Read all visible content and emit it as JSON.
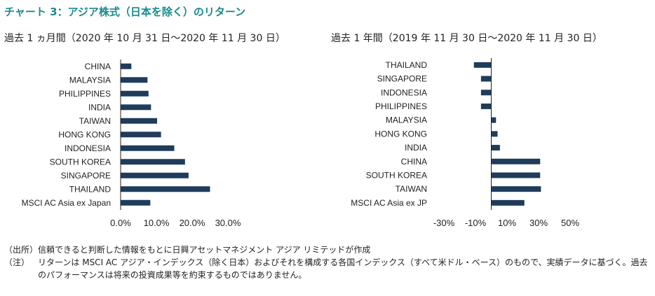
{
  "title": "チャート 3：アジア株式（日本を除く）のリターン",
  "colors": {
    "title": "#1a8a8a",
    "bar": "#1f3c5a",
    "axis": "#222222"
  },
  "chart_data": [
    {
      "type": "bar",
      "orientation": "horizontal",
      "title": "過去 1 ヵ月間（2020 年 10 月 31 日～2020 年 11 月 30 日）",
      "categories": [
        "CHINA",
        "MALAYSIA",
        "PHILIPPINES",
        "INDIA",
        "TAIWAN",
        "HONG KONG",
        "INDONESIA",
        "SOUTH KOREA",
        "SINGAPORE",
        "THAILAND",
        "MSCI AC Asia ex Japan"
      ],
      "values": [
        3.0,
        7.5,
        7.8,
        8.5,
        10.2,
        11.3,
        15.0,
        18.0,
        19.0,
        25.0,
        8.3
      ],
      "xlim": [
        0,
        30
      ],
      "xticks": [
        0,
        10,
        20,
        30
      ],
      "xtick_labels": [
        "0.0%",
        "10.0%",
        "20.0%",
        "30.0%"
      ]
    },
    {
      "type": "bar",
      "orientation": "horizontal",
      "title": "過去 1 年間（2019 年 11 月 30 日～2020 年 11 月 30 日）",
      "categories": [
        "THAILAND",
        "SINGAPORE",
        "INDONESIA",
        "PHILIPPINES",
        "MALAYSIA",
        "HONG KONG",
        "INDIA",
        "CHINA",
        "SOUTH KOREA",
        "TAIWAN",
        "MSCI AC Asia ex JP"
      ],
      "values": [
        -11.0,
        -6.5,
        -6.5,
        -6.5,
        3.0,
        4.0,
        5.5,
        31.0,
        31.0,
        31.5,
        21.0
      ],
      "xlim": [
        -30,
        50
      ],
      "xticks": [
        -30,
        -10,
        10,
        30,
        50
      ],
      "xtick_labels": [
        "-30%",
        "-10%",
        "10%",
        "30%",
        "50%"
      ]
    }
  ],
  "notes": [
    {
      "label": "（出所）",
      "text": "信頼できると判断した情報をもとに日興アセットマネジメント アジア リミテッドが作成"
    },
    {
      "label": "（注）",
      "text": "リターンは MSCI AC アジア・インデックス（除く日本）およびそれを構成する各国インデックス（すべて米ドル・ベース）のもので、実績データに基づく。過去のパフォーマンスは将来の投資成果等を約束するものではありません。"
    }
  ]
}
